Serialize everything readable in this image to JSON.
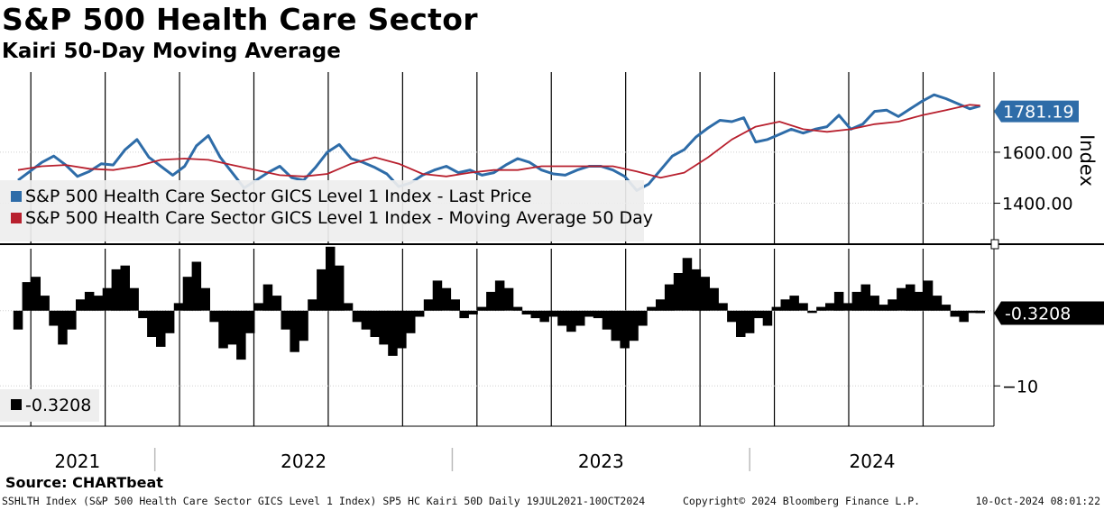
{
  "header": {
    "title": "S&P 500 Health Care Sector",
    "subtitle": "Kairi 50-Day Moving Average"
  },
  "footer": {
    "source": "Source: CHARTbeat",
    "description": "SSHLTH Index (S&P 500 Health Care Sector GICS Level 1 Index) SP5 HC Kairi 50D  Daily 19JUL2021-10OCT2024",
    "copyright": "Copyright© 2024 Bloomberg Finance L.P.",
    "timestamp": "10-Oct-2024 08:01:22"
  },
  "colors": {
    "price": "#2e6ca8",
    "ma": "#b8202e",
    "kairi": "#000000",
    "legend_bg": "#eeeeee",
    "price_tag": "#2e6ca8",
    "kairi_tag": "#000000"
  },
  "chart_data": [
    {
      "type": "line",
      "title": "S&P 500 Health Care Sector",
      "ylabel": "Index",
      "ylim": [
        1250,
        1900
      ],
      "yticks": [
        1400,
        1600
      ],
      "ytick_labels": [
        "1400.00",
        "1600.00"
      ],
      "last_value_label": "1781.19",
      "x_range": [
        2021.54,
        2024.775
      ],
      "x_tick_labels": [
        "2021",
        "2022",
        "2023",
        "2024"
      ],
      "x_label_positions": [
        2021.0,
        2022.0,
        2023.0,
        2024.0
      ],
      "x_year_boundaries": [
        2022.0,
        2023.0,
        2024.0
      ],
      "x_month_gridlines": [
        2021.583,
        2021.833,
        2022.083,
        2022.333,
        2022.583,
        2022.833,
        2023.083,
        2023.333,
        2023.583,
        2023.833,
        2024.083,
        2024.333,
        2024.583
      ],
      "legend": [
        "S&P 500 Health Care Sector GICS Level 1 Index - Last Price",
        "S&P 500 Health Care Sector GICS Level 1 Index - Moving Average 50 Day"
      ],
      "series": [
        {
          "name": "S&P 500 Health Care Sector GICS Level 1 Index - Last Price",
          "x": [
            2021.54,
            2021.58,
            2021.62,
            2021.66,
            2021.7,
            2021.74,
            2021.78,
            2021.82,
            2021.86,
            2021.9,
            2021.94,
            2021.98,
            2022.02,
            2022.06,
            2022.1,
            2022.14,
            2022.18,
            2022.22,
            2022.26,
            2022.3,
            2022.34,
            2022.38,
            2022.42,
            2022.46,
            2022.5,
            2022.54,
            2022.58,
            2022.62,
            2022.66,
            2022.7,
            2022.74,
            2022.78,
            2022.82,
            2022.86,
            2022.9,
            2022.94,
            2022.98,
            2023.02,
            2023.06,
            2023.1,
            2023.14,
            2023.18,
            2023.22,
            2023.26,
            2023.3,
            2023.34,
            2023.38,
            2023.42,
            2023.46,
            2023.5,
            2023.54,
            2023.58,
            2023.62,
            2023.66,
            2023.7,
            2023.74,
            2023.78,
            2023.82,
            2023.86,
            2023.9,
            2023.94,
            2023.98,
            2024.02,
            2024.06,
            2024.1,
            2024.14,
            2024.18,
            2024.22,
            2024.26,
            2024.3,
            2024.34,
            2024.38,
            2024.42,
            2024.46,
            2024.5,
            2024.54,
            2024.58,
            2024.62,
            2024.66,
            2024.7,
            2024.74,
            2024.775
          ],
          "y": [
            1490,
            1525,
            1560,
            1585,
            1550,
            1505,
            1525,
            1555,
            1550,
            1610,
            1650,
            1580,
            1545,
            1510,
            1545,
            1625,
            1665,
            1580,
            1520,
            1460,
            1490,
            1520,
            1545,
            1500,
            1490,
            1540,
            1600,
            1630,
            1575,
            1560,
            1540,
            1515,
            1465,
            1480,
            1510,
            1530,
            1545,
            1520,
            1530,
            1510,
            1520,
            1550,
            1575,
            1560,
            1530,
            1515,
            1510,
            1530,
            1545,
            1545,
            1530,
            1505,
            1450,
            1475,
            1530,
            1585,
            1610,
            1660,
            1695,
            1725,
            1720,
            1735,
            1640,
            1650,
            1670,
            1690,
            1675,
            1690,
            1700,
            1745,
            1690,
            1710,
            1760,
            1765,
            1740,
            1770,
            1800,
            1825,
            1810,
            1790,
            1770,
            1781.19
          ]
        },
        {
          "name": "S&P 500 Health Care Sector GICS Level 1 Index - Moving Average 50 Day",
          "x": [
            2021.54,
            2021.62,
            2021.7,
            2021.78,
            2021.86,
            2021.94,
            2022.02,
            2022.1,
            2022.18,
            2022.26,
            2022.34,
            2022.42,
            2022.5,
            2022.58,
            2022.66,
            2022.74,
            2022.82,
            2022.9,
            2022.98,
            2023.06,
            2023.14,
            2023.22,
            2023.3,
            2023.38,
            2023.46,
            2023.54,
            2023.62,
            2023.7,
            2023.78,
            2023.86,
            2023.94,
            2024.02,
            2024.1,
            2024.18,
            2024.26,
            2024.34,
            2024.42,
            2024.5,
            2024.58,
            2024.66,
            2024.74,
            2024.775
          ],
          "y": [
            1530,
            1545,
            1550,
            1535,
            1530,
            1545,
            1570,
            1575,
            1570,
            1550,
            1530,
            1510,
            1505,
            1515,
            1555,
            1580,
            1555,
            1515,
            1505,
            1520,
            1530,
            1530,
            1545,
            1545,
            1545,
            1545,
            1525,
            1500,
            1520,
            1580,
            1650,
            1700,
            1720,
            1690,
            1680,
            1690,
            1710,
            1720,
            1745,
            1765,
            1786,
            1783
          ]
        }
      ]
    },
    {
      "type": "bar",
      "title": "Kairi 50-Day Moving Average",
      "ylim": [
        -15,
        8
      ],
      "yticks": [
        -10
      ],
      "ytick_labels": [
        "-10"
      ],
      "last_value_label": "-0.3208",
      "legend": [
        "-0.3208"
      ],
      "x_range": [
        2021.54,
        2024.775
      ],
      "x": [
        2021.54,
        2021.57,
        2021.6,
        2021.63,
        2021.66,
        2021.69,
        2021.72,
        2021.75,
        2021.78,
        2021.81,
        2021.84,
        2021.87,
        2021.9,
        2021.93,
        2021.96,
        2021.99,
        2022.02,
        2022.05,
        2022.08,
        2022.11,
        2022.14,
        2022.17,
        2022.2,
        2022.23,
        2022.26,
        2022.29,
        2022.32,
        2022.35,
        2022.38,
        2022.41,
        2022.44,
        2022.47,
        2022.5,
        2022.53,
        2022.56,
        2022.59,
        2022.62,
        2022.65,
        2022.68,
        2022.71,
        2022.74,
        2022.77,
        2022.8,
        2022.83,
        2022.86,
        2022.89,
        2022.92,
        2022.95,
        2022.98,
        2023.01,
        2023.04,
        2023.07,
        2023.1,
        2023.13,
        2023.16,
        2023.19,
        2023.22,
        2023.25,
        2023.28,
        2023.31,
        2023.34,
        2023.37,
        2023.4,
        2023.43,
        2023.46,
        2023.49,
        2023.52,
        2023.55,
        2023.58,
        2023.61,
        2023.64,
        2023.67,
        2023.7,
        2023.73,
        2023.76,
        2023.79,
        2023.82,
        2023.85,
        2023.88,
        2023.91,
        2023.94,
        2023.97,
        2024.0,
        2024.03,
        2024.06,
        2024.09,
        2024.12,
        2024.15,
        2024.18,
        2024.21,
        2024.24,
        2024.27,
        2024.3,
        2024.33,
        2024.36,
        2024.39,
        2024.42,
        2024.45,
        2024.48,
        2024.51,
        2024.54,
        2024.57,
        2024.6,
        2024.63,
        2024.66,
        2024.69,
        2024.72,
        2024.75,
        2024.775
      ],
      "values": [
        -2.5,
        3.8,
        4.5,
        2.0,
        -2.0,
        -4.5,
        -2.5,
        1.5,
        2.5,
        2.0,
        3.0,
        5.5,
        6.0,
        3.0,
        -1.0,
        -3.5,
        -4.8,
        -3.0,
        1.0,
        4.5,
        6.5,
        3.0,
        -1.5,
        -5.0,
        -4.5,
        -6.5,
        -3.0,
        1.0,
        3.5,
        2.0,
        -2.5,
        -5.5,
        -4.0,
        1.5,
        5.5,
        8.5,
        6.0,
        1.0,
        -1.5,
        -2.5,
        -3.5,
        -4.5,
        -6.0,
        -5.0,
        -3.0,
        -0.8,
        1.5,
        4.0,
        3.0,
        1.5,
        -1.0,
        -0.5,
        0.5,
        2.5,
        4.0,
        3.0,
        0.5,
        -0.5,
        -1.0,
        -1.5,
        -0.8,
        -2.0,
        -2.8,
        -2.0,
        -0.8,
        -1.0,
        -2.5,
        -4.0,
        -5.0,
        -4.0,
        -2.0,
        0.5,
        1.5,
        3.5,
        5.0,
        7.0,
        5.5,
        4.5,
        3.0,
        1.0,
        -1.5,
        -3.5,
        -3.0,
        -1.0,
        -2.0,
        0.5,
        1.5,
        2.0,
        1.0,
        -0.3,
        0.5,
        1.0,
        2.5,
        1.0,
        2.5,
        3.5,
        2.0,
        0.8,
        1.5,
        3.0,
        3.5,
        2.5,
        4.0,
        2.0,
        0.8,
        -0.8,
        -1.5,
        -0.3,
        -0.3208
      ]
    }
  ]
}
